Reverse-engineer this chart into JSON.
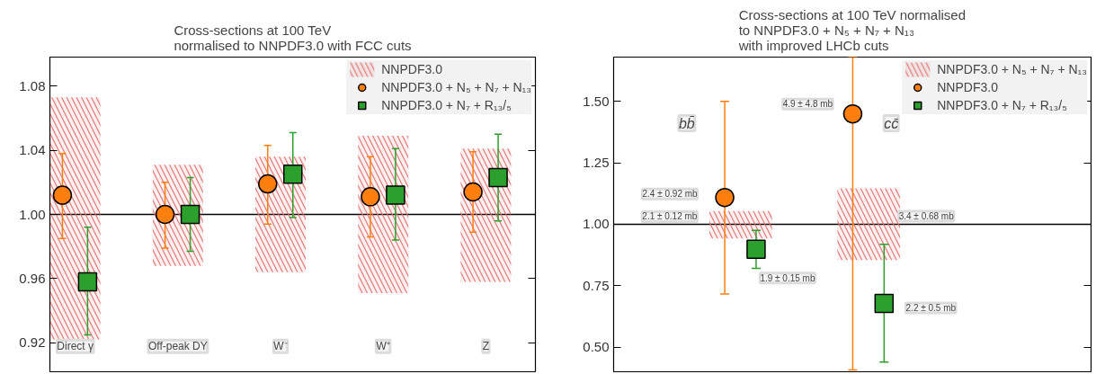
{
  "chart_data": [
    {
      "type": "scatter",
      "title": "Cross-sections at 100 TeV\nnormalised to NNPDF3.0 with FCC cuts",
      "categories": [
        "Direct γ",
        "Off-peak DY",
        "W⁻",
        "W⁺",
        "Z"
      ],
      "series": [
        {
          "name": "NNPDF3.0",
          "type": "bar",
          "color": "#e36a6a",
          "base": [
            0.922,
            0.968,
            0.964,
            0.951,
            0.958
          ],
          "values": [
            0.151,
            0.063,
            0.072,
            0.098,
            0.083
          ]
        },
        {
          "name": "NNPDF3.0 + N₅ + N₇ + N₁₃",
          "marker": "circle",
          "color": "#ff7f0e",
          "values": [
            1.012,
            1.0,
            1.019,
            1.011,
            1.014
          ],
          "errors": [
            [
              0.985,
              1.038
            ],
            [
              0.979,
              1.02
            ],
            [
              0.994,
              1.043
            ],
            [
              0.986,
              1.036
            ],
            [
              0.989,
              1.039
            ]
          ]
        },
        {
          "name": "NNPDF3.0 + N₇ + R₁₃/₅",
          "marker": "square",
          "color": "#2ca02c",
          "values": [
            0.958,
            1.0,
            1.025,
            1.012,
            1.023
          ],
          "errors": [
            [
              0.925,
              0.992
            ],
            [
              0.977,
              1.023
            ],
            [
              0.998,
              1.051
            ],
            [
              0.984,
              1.041
            ],
            [
              0.996,
              1.05
            ]
          ]
        }
      ],
      "ylim": [
        0.902,
        1.098
      ],
      "yticks": [
        0.92,
        0.96,
        {
          "value": 1.0,
          "label": "1.00"
        },
        1.04,
        1.08
      ],
      "ref_lines": [
        {
          "axis": "y",
          "value": 1.0,
          "color": "#000000"
        }
      ],
      "grid": false,
      "legend": "top right",
      "tick_labels": "y"
    },
    {
      "type": "scatter",
      "title": "Cross-sections at 100 TeV normalised\nto NNPDF3.0 + N₅ + N₇ + N₁₃\nwith improved LHCb cuts",
      "categories": [
        "bb̄",
        "cc̄"
      ],
      "series": [
        {
          "name": "NNPDF3.0 + N₅ + N₇ + N₁₃",
          "type": "bar",
          "color": "#e36a6a",
          "base": [
            0.942,
            0.854
          ],
          "values": [
            0.112,
            0.292
          ]
        },
        {
          "name": "NNPDF3.0",
          "marker": "circle",
          "color": "#ff7f0e",
          "values": [
            1.109,
            1.449
          ],
          "errors": [
            [
              0.716,
              1.5
            ],
            [
              0.407,
              1.68
            ]
          ]
        },
        {
          "name": "NNPDF3.0 + N₇ + R₁₃/₅",
          "marker": "square",
          "color": "#2ca02c",
          "values": [
            0.898,
            0.678
          ],
          "errors": [
            [
              0.821,
              0.975
            ],
            [
              0.439,
              0.918
            ]
          ]
        }
      ],
      "annotations": [
        "2.4 ± 0.92 mb",
        "2.1 ± 0.12 mb",
        "1.9 ± 0.15 mb",
        "4.9 ± 4.8 mb",
        "3.4 ± 0.68 mb",
        "2.2 ± 0.5 mb"
      ],
      "ylim": [
        0.4,
        1.68
      ],
      "yticks": [
        {
          "value": 0.5,
          "label": "0.50"
        },
        0.75,
        {
          "value": 1.0,
          "label": "1.00"
        },
        1.25,
        {
          "value": 1.5,
          "label": "1.50"
        }
      ],
      "ref_lines": [
        {
          "axis": "y",
          "value": 1.0,
          "color": "#000000"
        }
      ],
      "grid": false,
      "legend": "top right",
      "tick_labels": "y"
    }
  ]
}
